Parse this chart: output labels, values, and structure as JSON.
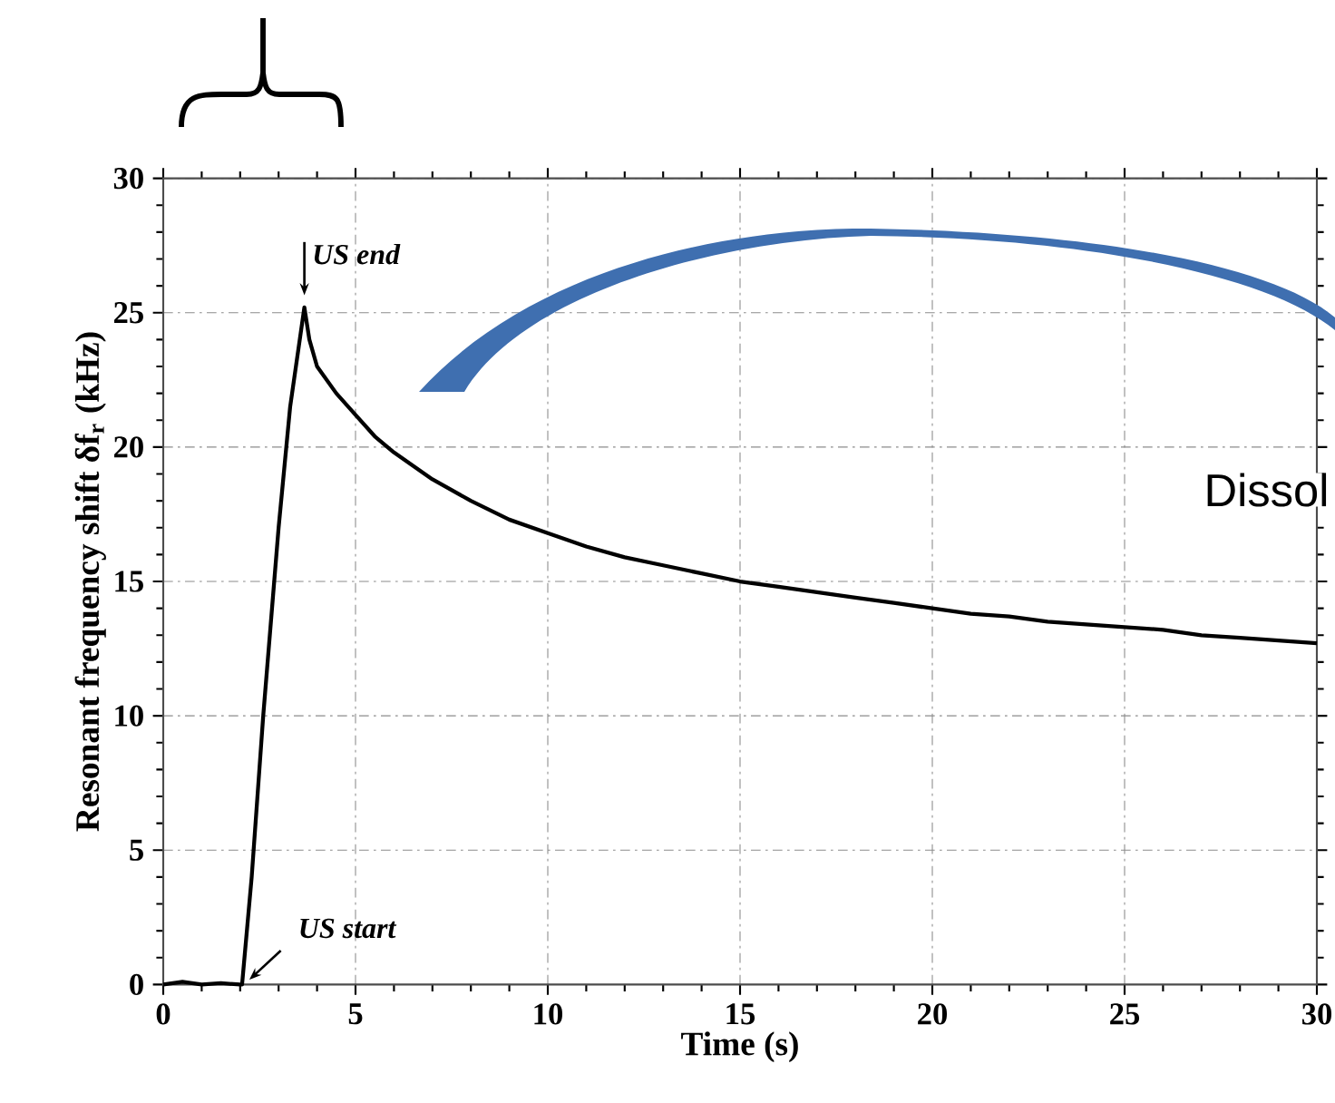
{
  "chart_data": {
    "type": "line",
    "xlabel": "Time (s)",
    "ylabel": "Resonant frequency shift δf$_{r}$ (kHz)",
    "x": [
      0,
      0.5,
      1,
      1.5,
      2,
      2.05,
      2.3,
      2.6,
      3.0,
      3.3,
      3.67,
      3.8,
      4,
      4.5,
      5,
      5.5,
      6,
      7,
      8,
      9,
      10,
      11,
      12,
      13,
      14,
      15,
      16,
      17,
      18,
      19,
      20,
      21,
      22,
      23,
      24,
      25,
      26,
      27,
      28,
      29,
      30
    ],
    "values": [
      0,
      0.1,
      0,
      0.05,
      0,
      0,
      4,
      10,
      17,
      21.5,
      25.2,
      24,
      23.0,
      22.0,
      21.2,
      20.4,
      19.8,
      18.8,
      18.0,
      17.3,
      16.8,
      16.3,
      15.9,
      15.6,
      15.3,
      15.0,
      14.8,
      14.6,
      14.4,
      14.2,
      14.0,
      13.8,
      13.7,
      13.5,
      13.4,
      13.3,
      13.2,
      13.0,
      12.9,
      12.8,
      12.7
    ],
    "color": "#000000",
    "xlim": [
      0,
      30
    ],
    "ylim": [
      0,
      30
    ],
    "xticks": [
      0,
      5,
      10,
      15,
      20,
      25,
      30
    ],
    "yticks": [
      0,
      5,
      10,
      15,
      20,
      25,
      30
    ],
    "grid": true,
    "annotations": [
      {
        "text": "US end",
        "x": 3.67,
        "y": 25.2
      },
      {
        "text": "US start",
        "x": 2.05,
        "y": 0
      },
      "Dissol"
    ]
  }
}
